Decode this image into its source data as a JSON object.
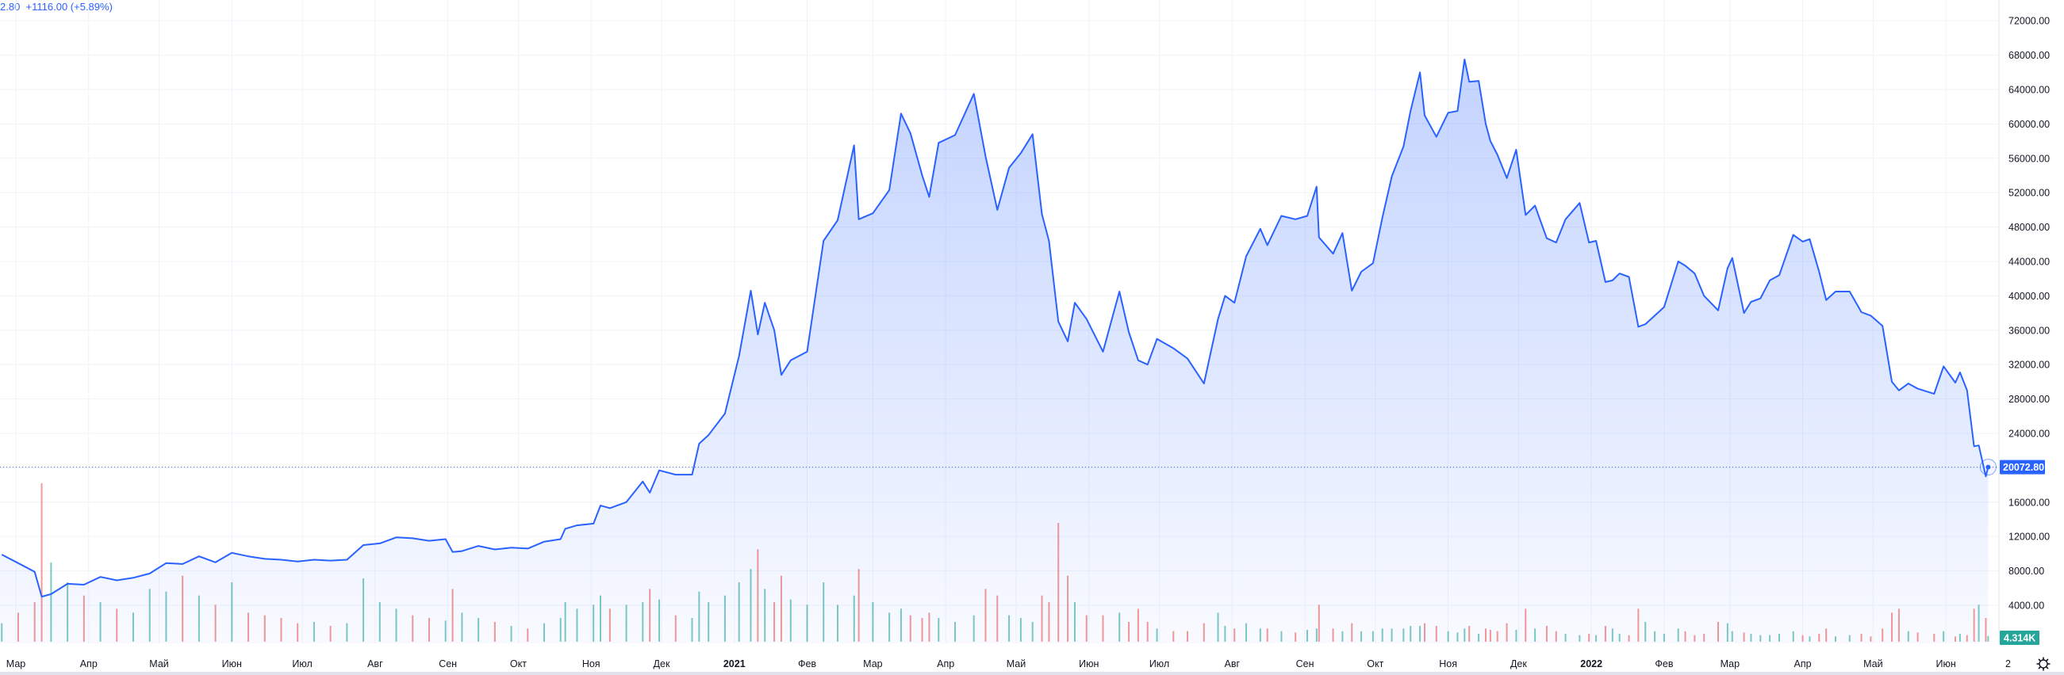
{
  "header": {
    "legend_text": "2.80  +1116.00 (+5.89%)"
  },
  "colors": {
    "line": "#2962ff",
    "up_volume": "#26a69a",
    "down_volume": "#ef5350",
    "grid": "#f0f3fa",
    "price_label_bg": "#2962ff",
    "volume_label_bg": "#26a69a"
  },
  "icons": {
    "settings": "gear-icon"
  },
  "price_axis": {
    "current_price_label": "20072.80",
    "volume_label": "4.314K"
  },
  "chart_data": {
    "type": "area",
    "ylim": [
      0,
      74000
    ],
    "y_ticks": [
      "4000.00",
      "8000.00",
      "12000.00",
      "16000.00",
      "20000.00",
      "24000.00",
      "28000.00",
      "32000.00",
      "36000.00",
      "40000.00",
      "44000.00",
      "48000.00",
      "52000.00",
      "56000.00",
      "60000.00",
      "64000.00",
      "68000.00",
      "72000.00"
    ],
    "y_tick_values": [
      4000,
      8000,
      12000,
      16000,
      20000,
      24000,
      28000,
      32000,
      36000,
      40000,
      44000,
      48000,
      52000,
      56000,
      60000,
      64000,
      68000,
      72000
    ],
    "hidden_y_ticks": [
      20000
    ],
    "x_ticks": [
      {
        "date": "2020-03-01",
        "label": "Мар"
      },
      {
        "date": "2020-04-01",
        "label": "Апр"
      },
      {
        "date": "2020-05-01",
        "label": "Май"
      },
      {
        "date": "2020-06-01",
        "label": "Июн"
      },
      {
        "date": "2020-07-01",
        "label": "Июл"
      },
      {
        "date": "2020-08-01",
        "label": "Авг"
      },
      {
        "date": "2020-09-01",
        "label": "Сен"
      },
      {
        "date": "2020-10-01",
        "label": "Окт"
      },
      {
        "date": "2020-11-01",
        "label": "Ноя"
      },
      {
        "date": "2020-12-01",
        "label": "Дек"
      },
      {
        "date": "2021-01-01",
        "label": "2021",
        "year": true
      },
      {
        "date": "2021-02-01",
        "label": "Фев"
      },
      {
        "date": "2021-03-01",
        "label": "Мар"
      },
      {
        "date": "2021-04-01",
        "label": "Апр"
      },
      {
        "date": "2021-05-01",
        "label": "Май"
      },
      {
        "date": "2021-06-01",
        "label": "Июн"
      },
      {
        "date": "2021-07-01",
        "label": "Июл"
      },
      {
        "date": "2021-08-01",
        "label": "Авг"
      },
      {
        "date": "2021-09-01",
        "label": "Сен"
      },
      {
        "date": "2021-10-01",
        "label": "Окт"
      },
      {
        "date": "2021-11-01",
        "label": "Ноя"
      },
      {
        "date": "2021-12-01",
        "label": "Дек"
      },
      {
        "date": "2022-01-01",
        "label": "2022",
        "year": true
      },
      {
        "date": "2022-02-01",
        "label": "Фев"
      },
      {
        "date": "2022-03-01",
        "label": "Мар"
      },
      {
        "date": "2022-04-01",
        "label": "Апр"
      },
      {
        "date": "2022-05-01",
        "label": "Май"
      },
      {
        "date": "2022-06-01",
        "label": "Июн"
      },
      {
        "date": "2022-07-01",
        "label": "2"
      }
    ],
    "last_price": 20072.8,
    "volume_unit": "K",
    "series": [
      {
        "values": [
          [
            "2020-02-24",
            9900,
            14
          ],
          [
            "2020-03-02",
            8900,
            22
          ],
          [
            "2020-03-09",
            7900,
            30
          ],
          [
            "2020-03-12",
            5000,
            120
          ],
          [
            "2020-03-16",
            5300,
            60
          ],
          [
            "2020-03-23",
            6500,
            45
          ],
          [
            "2020-03-30",
            6400,
            35
          ],
          [
            "2020-04-06",
            7300,
            30
          ],
          [
            "2020-04-13",
            6900,
            25
          ],
          [
            "2020-04-20",
            7200,
            22
          ],
          [
            "2020-04-27",
            7700,
            40
          ],
          [
            "2020-05-04",
            8900,
            38
          ],
          [
            "2020-05-11",
            8800,
            50
          ],
          [
            "2020-05-18",
            9700,
            35
          ],
          [
            "2020-05-25",
            9000,
            28
          ],
          [
            "2020-06-01",
            10100,
            45
          ],
          [
            "2020-06-08",
            9700,
            22
          ],
          [
            "2020-06-15",
            9400,
            20
          ],
          [
            "2020-06-22",
            9300,
            18
          ],
          [
            "2020-06-29",
            9100,
            14
          ],
          [
            "2020-07-06",
            9300,
            15
          ],
          [
            "2020-07-13",
            9200,
            12
          ],
          [
            "2020-07-20",
            9300,
            14
          ],
          [
            "2020-07-27",
            11000,
            48
          ],
          [
            "2020-08-03",
            11200,
            30
          ],
          [
            "2020-08-10",
            11900,
            25
          ],
          [
            "2020-08-17",
            11800,
            20
          ],
          [
            "2020-08-24",
            11500,
            18
          ],
          [
            "2020-08-31",
            11700,
            16
          ],
          [
            "2020-09-03",
            10200,
            40
          ],
          [
            "2020-09-07",
            10300,
            22
          ],
          [
            "2020-09-14",
            10900,
            18
          ],
          [
            "2020-09-21",
            10500,
            15
          ],
          [
            "2020-09-28",
            10700,
            12
          ],
          [
            "2020-10-05",
            10600,
            10
          ],
          [
            "2020-10-12",
            11400,
            14
          ],
          [
            "2020-10-19",
            11700,
            18
          ],
          [
            "2020-10-21",
            12900,
            30
          ],
          [
            "2020-10-26",
            13300,
            25
          ],
          [
            "2020-11-02",
            13500,
            28
          ],
          [
            "2020-11-05",
            15600,
            35
          ],
          [
            "2020-11-09",
            15300,
            25
          ],
          [
            "2020-11-16",
            16000,
            28
          ],
          [
            "2020-11-23",
            18400,
            30
          ],
          [
            "2020-11-26",
            17100,
            40
          ],
          [
            "2020-11-30",
            19700,
            32
          ],
          [
            "2020-12-07",
            19200,
            20
          ],
          [
            "2020-12-14",
            19200,
            18
          ],
          [
            "2020-12-17",
            22800,
            38
          ],
          [
            "2020-12-21",
            23800,
            30
          ],
          [
            "2020-12-28",
            26300,
            35
          ],
          [
            "2021-01-03",
            33000,
            45
          ],
          [
            "2021-01-08",
            40600,
            55
          ],
          [
            "2021-01-11",
            35500,
            70
          ],
          [
            "2021-01-14",
            39200,
            40
          ],
          [
            "2021-01-18",
            36000,
            30
          ],
          [
            "2021-01-21",
            30800,
            50
          ],
          [
            "2021-01-25",
            32500,
            32
          ],
          [
            "2021-02-01",
            33500,
            28
          ],
          [
            "2021-02-08",
            46400,
            45
          ],
          [
            "2021-02-14",
            48800,
            28
          ],
          [
            "2021-02-21",
            57500,
            35
          ],
          [
            "2021-02-23",
            48900,
            55
          ],
          [
            "2021-03-01",
            49600,
            30
          ],
          [
            "2021-03-08",
            52300,
            22
          ],
          [
            "2021-03-13",
            61200,
            25
          ],
          [
            "2021-03-17",
            58900,
            20
          ],
          [
            "2021-03-22",
            54000,
            18
          ],
          [
            "2021-03-25",
            51500,
            22
          ],
          [
            "2021-03-29",
            57800,
            18
          ],
          [
            "2021-04-05",
            58700,
            15
          ],
          [
            "2021-04-13",
            63500,
            20
          ],
          [
            "2021-04-18",
            56200,
            40
          ],
          [
            "2021-04-23",
            50000,
            35
          ],
          [
            "2021-04-28",
            54900,
            20
          ],
          [
            "2021-05-03",
            56600,
            18
          ],
          [
            "2021-05-08",
            58800,
            15
          ],
          [
            "2021-05-12",
            49500,
            35
          ],
          [
            "2021-05-15",
            46400,
            30
          ],
          [
            "2021-05-19",
            37000,
            90
          ],
          [
            "2021-05-23",
            34700,
            50
          ],
          [
            "2021-05-26",
            39200,
            30
          ],
          [
            "2021-05-31",
            37300,
            20
          ],
          [
            "2021-06-07",
            33500,
            20
          ],
          [
            "2021-06-14",
            40500,
            22
          ],
          [
            "2021-06-18",
            35800,
            15
          ],
          [
            "2021-06-22",
            32500,
            25
          ],
          [
            "2021-06-26",
            32000,
            15
          ],
          [
            "2021-06-30",
            35000,
            10
          ],
          [
            "2021-07-07",
            33900,
            8
          ],
          [
            "2021-07-13",
            32700,
            8
          ],
          [
            "2021-07-20",
            29800,
            14
          ],
          [
            "2021-07-26",
            37300,
            22
          ],
          [
            "2021-07-29",
            40000,
            12
          ],
          [
            "2021-08-02",
            39200,
            10
          ],
          [
            "2021-08-07",
            44600,
            14
          ],
          [
            "2021-08-13",
            47800,
            10
          ],
          [
            "2021-08-16",
            45900,
            10
          ],
          [
            "2021-08-22",
            49300,
            8
          ],
          [
            "2021-08-28",
            48900,
            7
          ],
          [
            "2021-09-02",
            49300,
            9
          ],
          [
            "2021-09-06",
            52700,
            10
          ],
          [
            "2021-09-07",
            46800,
            28
          ],
          [
            "2021-09-13",
            44900,
            10
          ],
          [
            "2021-09-17",
            47300,
            8
          ],
          [
            "2021-09-21",
            40600,
            14
          ],
          [
            "2021-09-25",
            42800,
            8
          ],
          [
            "2021-09-30",
            43800,
            8
          ],
          [
            "2021-10-04",
            49100,
            10
          ],
          [
            "2021-10-08",
            53900,
            10
          ],
          [
            "2021-10-13",
            57400,
            10
          ],
          [
            "2021-10-16",
            61500,
            12
          ],
          [
            "2021-10-20",
            66000,
            12
          ],
          [
            "2021-10-22",
            61000,
            14
          ],
          [
            "2021-10-27",
            58500,
            12
          ],
          [
            "2021-11-01",
            61300,
            8
          ],
          [
            "2021-11-05",
            61500,
            7
          ],
          [
            "2021-11-08",
            67500,
            10
          ],
          [
            "2021-11-10",
            64900,
            12
          ],
          [
            "2021-11-14",
            65000,
            6
          ],
          [
            "2021-11-17",
            60000,
            10
          ],
          [
            "2021-11-19",
            58000,
            9
          ],
          [
            "2021-11-22",
            56400,
            8
          ],
          [
            "2021-11-26",
            53700,
            14
          ],
          [
            "2021-11-30",
            57000,
            9
          ],
          [
            "2021-12-04",
            49400,
            25
          ],
          [
            "2021-12-08",
            50500,
            10
          ],
          [
            "2021-12-13",
            46700,
            12
          ],
          [
            "2021-12-17",
            46200,
            8
          ],
          [
            "2021-12-21",
            48900,
            6
          ],
          [
            "2021-12-27",
            50800,
            5
          ],
          [
            "2021-12-31",
            46200,
            6
          ],
          [
            "2022-01-03",
            46400,
            5
          ],
          [
            "2022-01-07",
            41600,
            12
          ],
          [
            "2022-01-10",
            41800,
            10
          ],
          [
            "2022-01-13",
            42600,
            6
          ],
          [
            "2022-01-17",
            42200,
            5
          ],
          [
            "2022-01-21",
            36400,
            25
          ],
          [
            "2022-01-24",
            36700,
            15
          ],
          [
            "2022-01-28",
            37700,
            8
          ],
          [
            "2022-02-01",
            38700,
            6
          ],
          [
            "2022-02-07",
            44000,
            10
          ],
          [
            "2022-02-10",
            43500,
            8
          ],
          [
            "2022-02-14",
            42600,
            5
          ],
          [
            "2022-02-18",
            40000,
            6
          ],
          [
            "2022-02-24",
            38300,
            15
          ],
          [
            "2022-02-28",
            43200,
            14
          ],
          [
            "2022-03-02",
            44400,
            8
          ],
          [
            "2022-03-07",
            38000,
            7
          ],
          [
            "2022-03-10",
            39300,
            6
          ],
          [
            "2022-03-14",
            39700,
            5
          ],
          [
            "2022-03-18",
            41800,
            5
          ],
          [
            "2022-03-22",
            42400,
            6
          ],
          [
            "2022-03-28",
            47100,
            8
          ],
          [
            "2022-04-01",
            46300,
            5
          ],
          [
            "2022-04-04",
            46600,
            4
          ],
          [
            "2022-04-08",
            42800,
            6
          ],
          [
            "2022-04-11",
            39500,
            10
          ],
          [
            "2022-04-15",
            40500,
            4
          ],
          [
            "2022-04-21",
            40500,
            5
          ],
          [
            "2022-04-26",
            38100,
            6
          ],
          [
            "2022-04-30",
            37700,
            4
          ],
          [
            "2022-05-05",
            36500,
            10
          ],
          [
            "2022-05-09",
            30000,
            22
          ],
          [
            "2022-05-12",
            29000,
            25
          ],
          [
            "2022-05-16",
            29800,
            8
          ],
          [
            "2022-05-20",
            29200,
            7
          ],
          [
            "2022-05-27",
            28600,
            6
          ],
          [
            "2022-05-31",
            31800,
            8
          ],
          [
            "2022-06-05",
            29900,
            4
          ],
          [
            "2022-06-07",
            31100,
            6
          ],
          [
            "2022-06-10",
            29000,
            5
          ],
          [
            "2022-06-13",
            22500,
            25
          ],
          [
            "2022-06-15",
            22600,
            28
          ],
          [
            "2022-06-18",
            19000,
            18
          ],
          [
            "2022-06-19",
            20072.8,
            4.314
          ]
        ]
      }
    ]
  }
}
